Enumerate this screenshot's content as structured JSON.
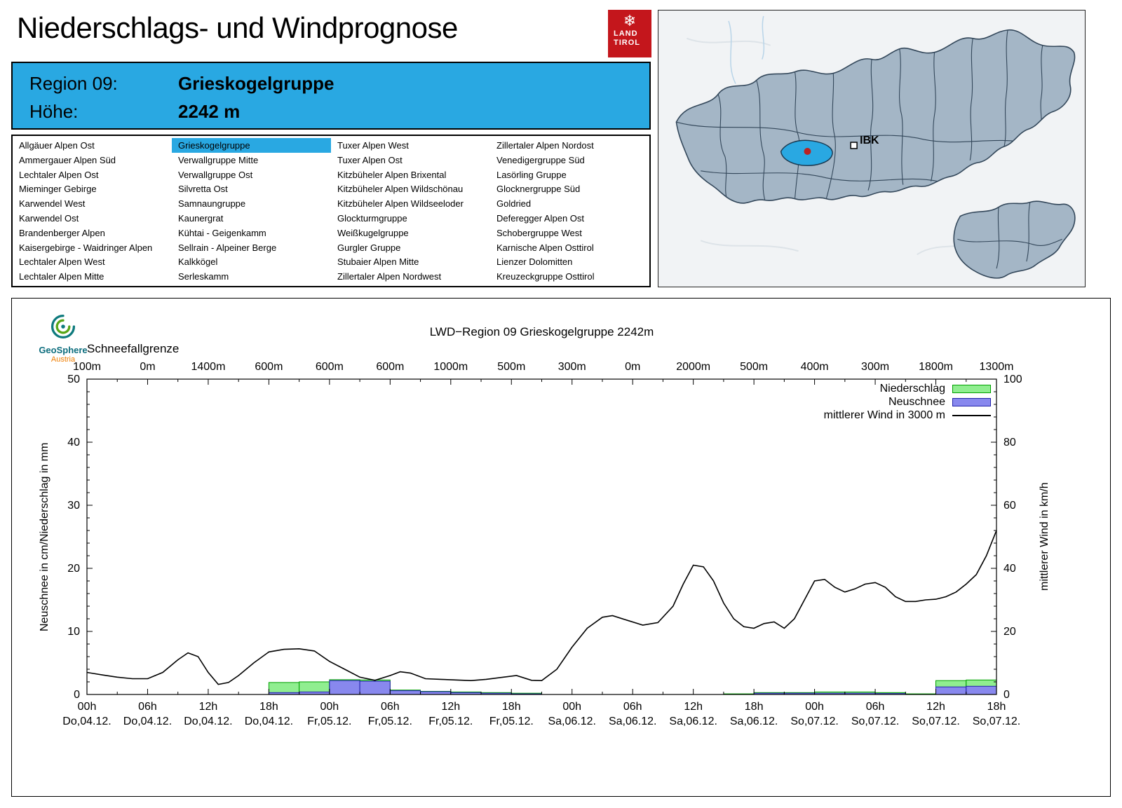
{
  "header": {
    "title": "Niederschlags- und Windprognose"
  },
  "logo": {
    "glyph": "❄",
    "line1": "LAND",
    "line2": "TIROL",
    "color": "#c4161c"
  },
  "region_header": {
    "region_label": "Region 09:",
    "region_value": "Grieskogelgruppe",
    "altitude_label": "Höhe:",
    "altitude_value": "2242 m",
    "bg_color": "#29a8e2"
  },
  "region_list": {
    "selected": "Grieskogelgruppe",
    "columns": [
      [
        "Allgäuer Alpen Ost",
        "Ammergauer Alpen Süd",
        "Lechtaler Alpen Ost",
        "Mieminger Gebirge",
        "Karwendel West",
        "Karwendel Ost",
        "Brandenberger Alpen",
        "Kaisergebirge - Waidringer Alpen",
        "Lechtaler Alpen West",
        "Lechtaler Alpen Mitte"
      ],
      [
        "Grieskogelgruppe",
        "Verwallgruppe Mitte",
        "Verwallgruppe Ost",
        "Silvretta Ost",
        "Samnaungruppe",
        "Kaunergrat",
        "Kühtai - Geigenkamm",
        "Sellrain - Alpeiner Berge",
        "Kalkkögel",
        "Serleskamm"
      ],
      [
        "Tuxer Alpen West",
        "Tuxer Alpen Ost",
        "Kitzbüheler Alpen Brixental",
        "Kitzbüheler Alpen Wildschönau",
        "Kitzbüheler Alpen Wildseeloder",
        "Glockturmgruppe",
        "Weißkugelgruppe",
        "Gurgler Gruppe",
        "Stubaier Alpen Mitte",
        "Zillertaler Alpen Nordwest"
      ],
      [
        "Zillertaler Alpen Nordost",
        "Venedigergruppe Süd",
        "Lasörling Gruppe",
        "Glocknergruppe Süd",
        "Goldried",
        "Deferegger Alpen Ost",
        "Schobergruppe West",
        "Karnische Alpen Osttirol",
        "Lienzer Dolomitten",
        "Kreuzeckgruppe Osttirol"
      ]
    ]
  },
  "map": {
    "city_label": "IBK",
    "region_fill": "#a4b6c6",
    "selected_fill": "#29a8e2",
    "dot_color": "#bb2222"
  },
  "geosphere": {
    "name": "GeoSphere",
    "country": "Austria"
  },
  "chart_data": {
    "type": "bar",
    "title": "LWD−Region 09 Grieskogelgruppe 2242m",
    "x_hours_range": [
      0,
      90
    ],
    "x_ticks": [
      {
        "time": "00h",
        "date": "Do,04.12."
      },
      {
        "time": "06h",
        "date": "Do,04.12."
      },
      {
        "time": "12h",
        "date": "Do,04.12."
      },
      {
        "time": "18h",
        "date": "Do,04.12."
      },
      {
        "time": "00h",
        "date": "Fr,05.12."
      },
      {
        "time": "06h",
        "date": "Fr,05.12."
      },
      {
        "time": "12h",
        "date": "Fr,05.12."
      },
      {
        "time": "18h",
        "date": "Fr,05.12."
      },
      {
        "time": "00h",
        "date": "Sa,06.12."
      },
      {
        "time": "06h",
        "date": "Sa,06.12."
      },
      {
        "time": "12h",
        "date": "Sa,06.12."
      },
      {
        "time": "18h",
        "date": "Sa,06.12."
      },
      {
        "time": "00h",
        "date": "So,07.12."
      },
      {
        "time": "06h",
        "date": "So,07.12."
      },
      {
        "time": "12h",
        "date": "So,07.12."
      },
      {
        "time": "18h",
        "date": "So,07.12."
      }
    ],
    "schneefallgrenze": {
      "label": "Schneefallgrenze",
      "values": [
        "100m",
        "0m",
        "1400m",
        "600m",
        "600m",
        "600m",
        "1000m",
        "500m",
        "300m",
        "0m",
        "2000m",
        "500m",
        "400m",
        "300m",
        "1800m",
        "1300m"
      ]
    },
    "y_left": {
      "label": "Neuschnee in cm/Niederschlag in mm",
      "min": 0,
      "max": 50,
      "ticks": [
        0,
        10,
        20,
        30,
        40,
        50
      ]
    },
    "y_right": {
      "label": "mittlerer Wind in km/h",
      "min": 0,
      "max": 100,
      "ticks": [
        0,
        20,
        40,
        60,
        80,
        100
      ]
    },
    "legend": [
      {
        "label": "Niederschlag",
        "type": "box",
        "fill": "#90ee90",
        "stroke": "#00a000"
      },
      {
        "label": "Neuschnee",
        "type": "box",
        "fill": "#8888ee",
        "stroke": "#2222aa"
      },
      {
        "label": "mittlerer Wind in 3000 m",
        "type": "line",
        "color": "#000000"
      }
    ],
    "series": [
      {
        "name": "Niederschlag",
        "data_name": "precip-bars",
        "type": "bar",
        "axis": "left",
        "unit": "mm",
        "color_fill": "#90ee90",
        "color_stroke": "#00a000",
        "bars": [
          {
            "from": 18,
            "to": 21,
            "value": 1.9
          },
          {
            "from": 21,
            "to": 24,
            "value": 2.0
          },
          {
            "from": 24,
            "to": 27,
            "value": 2.35
          },
          {
            "from": 27,
            "to": 30,
            "value": 2.3
          },
          {
            "from": 30,
            "to": 33,
            "value": 0.7
          },
          {
            "from": 33,
            "to": 36,
            "value": 0.5
          },
          {
            "from": 36,
            "to": 39,
            "value": 0.4
          },
          {
            "from": 39,
            "to": 42,
            "value": 0.3
          },
          {
            "from": 42,
            "to": 45,
            "value": 0.2
          },
          {
            "from": 63,
            "to": 66,
            "value": 0.1
          },
          {
            "from": 66,
            "to": 69,
            "value": 0.3
          },
          {
            "from": 69,
            "to": 72,
            "value": 0.3
          },
          {
            "from": 72,
            "to": 75,
            "value": 0.4
          },
          {
            "from": 75,
            "to": 78,
            "value": 0.4
          },
          {
            "from": 78,
            "to": 81,
            "value": 0.3
          },
          {
            "from": 81,
            "to": 84,
            "value": 0.1
          },
          {
            "from": 84,
            "to": 87,
            "value": 2.2
          },
          {
            "from": 87,
            "to": 90,
            "value": 2.3
          }
        ]
      },
      {
        "name": "Neuschnee",
        "data_name": "snow-bars",
        "type": "bar",
        "axis": "left",
        "unit": "cm",
        "color_fill": "#8888ee",
        "color_stroke": "#2222aa",
        "bars": [
          {
            "from": 18,
            "to": 21,
            "value": 0.3
          },
          {
            "from": 21,
            "to": 24,
            "value": 0.4
          },
          {
            "from": 24,
            "to": 27,
            "value": 2.2
          },
          {
            "from": 27,
            "to": 30,
            "value": 2.1
          },
          {
            "from": 30,
            "to": 33,
            "value": 0.6
          },
          {
            "from": 33,
            "to": 36,
            "value": 0.45
          },
          {
            "from": 36,
            "to": 39,
            "value": 0.3
          },
          {
            "from": 39,
            "to": 42,
            "value": 0.2
          },
          {
            "from": 42,
            "to": 45,
            "value": 0.1
          },
          {
            "from": 66,
            "to": 69,
            "value": 0.2
          },
          {
            "from": 69,
            "to": 72,
            "value": 0.2
          },
          {
            "from": 72,
            "to": 75,
            "value": 0.2
          },
          {
            "from": 75,
            "to": 78,
            "value": 0.2
          },
          {
            "from": 78,
            "to": 81,
            "value": 0.15
          },
          {
            "from": 84,
            "to": 87,
            "value": 1.2
          },
          {
            "from": 87,
            "to": 90,
            "value": 1.3
          }
        ]
      },
      {
        "name": "mittlerer Wind in 3000 m",
        "data_name": "wind-line",
        "type": "line",
        "axis": "right",
        "unit": "km/h",
        "color": "#000000",
        "points": [
          [
            0,
            7
          ],
          [
            1.5,
            6.2
          ],
          [
            3,
            5.5
          ],
          [
            4.5,
            5
          ],
          [
            6,
            5
          ],
          [
            7.5,
            7
          ],
          [
            9,
            11
          ],
          [
            10,
            13.2
          ],
          [
            11,
            12
          ],
          [
            12,
            7
          ],
          [
            13,
            3.2
          ],
          [
            14,
            3.8
          ],
          [
            15,
            6
          ],
          [
            16.5,
            10
          ],
          [
            18,
            13.5
          ],
          [
            19.5,
            14.3
          ],
          [
            21,
            14.5
          ],
          [
            22.5,
            13.8
          ],
          [
            24,
            10.5
          ],
          [
            25.5,
            8
          ],
          [
            27,
            5.5
          ],
          [
            28.5,
            4.5
          ],
          [
            30,
            6
          ],
          [
            31,
            7.2
          ],
          [
            32,
            6.8
          ],
          [
            33.5,
            5
          ],
          [
            35,
            4.8
          ],
          [
            36.5,
            4.6
          ],
          [
            38,
            4.4
          ],
          [
            39.5,
            4.8
          ],
          [
            41,
            5.4
          ],
          [
            42.5,
            6
          ],
          [
            44,
            4.5
          ],
          [
            45,
            4.4
          ],
          [
            46.5,
            8
          ],
          [
            48,
            15
          ],
          [
            49.5,
            21
          ],
          [
            51,
            24.5
          ],
          [
            52,
            25
          ],
          [
            53.5,
            23.5
          ],
          [
            55,
            22
          ],
          [
            56.5,
            22.8
          ],
          [
            58,
            28
          ],
          [
            59,
            35
          ],
          [
            60,
            41
          ],
          [
            61,
            40.5
          ],
          [
            62,
            36
          ],
          [
            63,
            29
          ],
          [
            64,
            24
          ],
          [
            65,
            21.5
          ],
          [
            66,
            21
          ],
          [
            67,
            22.5
          ],
          [
            68,
            23
          ],
          [
            69,
            21
          ],
          [
            70,
            24
          ],
          [
            71,
            30
          ],
          [
            72,
            36
          ],
          [
            73,
            36.5
          ],
          [
            74,
            34
          ],
          [
            75,
            32.5
          ],
          [
            76,
            33.5
          ],
          [
            77,
            35
          ],
          [
            78,
            35.5
          ],
          [
            79,
            34
          ],
          [
            80,
            31
          ],
          [
            81,
            29.5
          ],
          [
            82,
            29.5
          ],
          [
            83,
            30
          ],
          [
            84,
            30.2
          ],
          [
            85,
            31
          ],
          [
            86,
            32.5
          ],
          [
            87,
            35
          ],
          [
            88,
            38
          ],
          [
            89,
            44
          ],
          [
            90,
            52
          ]
        ]
      }
    ]
  }
}
